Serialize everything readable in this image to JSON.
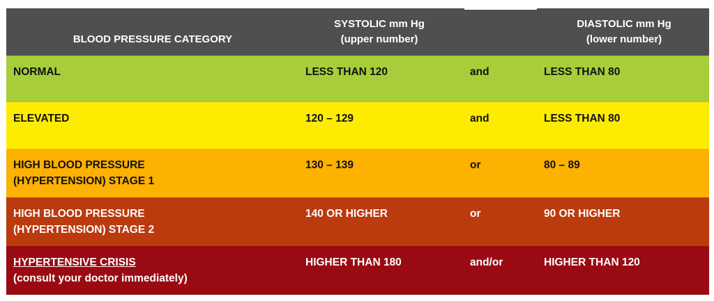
{
  "header": {
    "category": "BLOOD PRESSURE CATEGORY",
    "systolic_line1": "SYSTOLIC mm Hg",
    "systolic_line2": "(upper number)",
    "diastolic_line1": "DIASTOLIC mm Hg",
    "diastolic_line2": "(lower number)"
  },
  "rows": [
    {
      "category_line1": "NORMAL",
      "category_line2": "",
      "systolic": "LESS THAN 120",
      "conjunction": "and",
      "diastolic": "LESS THAN 80",
      "color": "#a7cd3a"
    },
    {
      "category_line1": "ELEVATED",
      "category_line2": "",
      "systolic": "120 – 129",
      "conjunction": "and",
      "diastolic": "LESS THAN 80",
      "color": "#feec00"
    },
    {
      "category_line1": "HIGH BLOOD PRESSURE",
      "category_line2": "(HYPERTENSION) STAGE 1",
      "systolic": "130 – 139",
      "conjunction": "or",
      "diastolic": "80 – 89",
      "color": "#fdb100"
    },
    {
      "category_line1": "HIGH BLOOD PRESSURE",
      "category_line2": "(HYPERTENSION) STAGE 2",
      "systolic": "140 OR HIGHER",
      "conjunction": "or",
      "diastolic": "90 OR HIGHER",
      "color": "#bb3a0e"
    },
    {
      "category_line1": "HYPERTENSIVE CRISIS",
      "category_line2": "(consult your doctor immediately)",
      "systolic": "HIGHER THAN 180",
      "conjunction": "and/or",
      "diastolic": "HIGHER THAN 120",
      "color": "#9a0a12"
    }
  ]
}
